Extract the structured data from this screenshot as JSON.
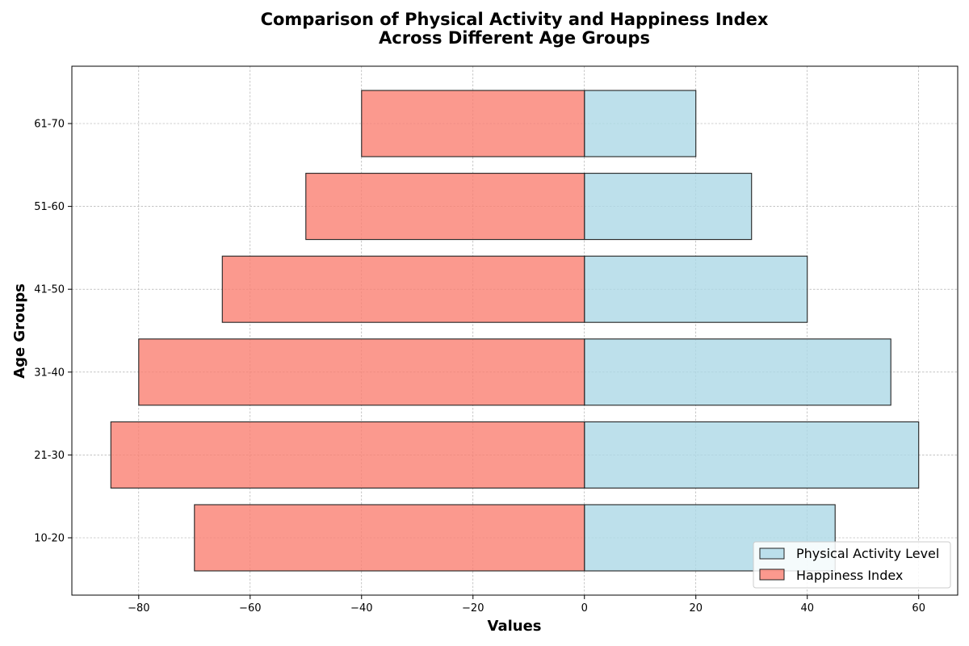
{
  "chart_data": {
    "type": "bar",
    "orientation": "horizontal",
    "title_lines": [
      "Comparison of Physical Activity and Happiness Index",
      "Across Different Age Groups"
    ],
    "xlabel": "Values",
    "ylabel": "Age Groups",
    "categories": [
      "10-20",
      "21-30",
      "31-40",
      "41-50",
      "51-60",
      "61-70"
    ],
    "series": [
      {
        "name": "Physical Activity Level",
        "values": [
          45,
          60,
          55,
          40,
          30,
          20
        ],
        "color": "#add8e6"
      },
      {
        "name": "Happiness Index",
        "values": [
          -70,
          -85,
          -80,
          -65,
          -50,
          -40
        ],
        "color": "#fa8072"
      }
    ],
    "xlim": [
      -92,
      67
    ],
    "xticks": [
      -80,
      -60,
      -40,
      -20,
      0,
      20,
      40,
      60
    ],
    "xtick_labels": [
      "−80",
      "−60",
      "−40",
      "−20",
      "0",
      "20",
      "40",
      "60"
    ],
    "grid": true,
    "legend_position": "lower-right"
  }
}
